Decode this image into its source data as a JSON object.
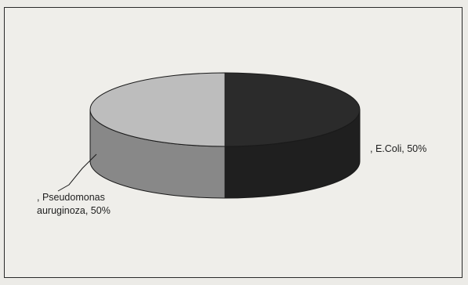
{
  "chart_data": {
    "type": "pie",
    "style": "3d",
    "title": "",
    "legend": "none",
    "slices": [
      {
        "label": "E.Coli",
        "value": 50,
        "pct_text": "50%",
        "color": "#2b2b2b"
      },
      {
        "label": "Pseudomonas auruginoza",
        "value": 50,
        "pct_text": "50%",
        "color": "#bdbdbd"
      }
    ],
    "data_labels": [
      {
        "lines": [
          ", E.Coli, 50%"
        ]
      },
      {
        "lines": [
          ", Pseudomonas",
          "auruginoza, 50%"
        ]
      }
    ]
  }
}
